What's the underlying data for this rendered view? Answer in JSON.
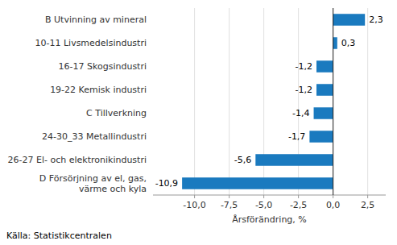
{
  "chart_data": {
    "type": "bar",
    "orientation": "horizontal",
    "categories": [
      "D Försörjning av el, gas,\nvärme och kyla",
      "26-27 El- och elektronikindustri",
      "24-30_33 Metallindustri",
      "C Tillverkning",
      "19-22 Kemisk industri",
      "16-17 Skogsindustri",
      "10-11 Livsmedelsindustri",
      "B Utvinning av mineral"
    ],
    "values": [
      -10.9,
      -5.6,
      -1.7,
      -1.4,
      -1.2,
      -1.2,
      0.3,
      2.3
    ],
    "value_labels": [
      "-10,9",
      "-5,6",
      "-1,7",
      "-1,4",
      "-1,2",
      "-1,2",
      "0,3",
      "2,3"
    ],
    "data_labels": true,
    "color": "#1a7abf",
    "xlabel": "Årsförändring, %",
    "xlim": [
      -13.0,
      3.8
    ],
    "xticks": [
      {
        "value": -10.0,
        "label": "-10,0"
      },
      {
        "value": -7.5,
        "label": "-7,5"
      },
      {
        "value": -5.0,
        "label": "-5,0"
      },
      {
        "value": -2.5,
        "label": "-2,5"
      },
      {
        "value": 0.0,
        "label": "0,0"
      },
      {
        "value": 2.5,
        "label": "2,5"
      }
    ],
    "grid": true,
    "source": "Källa: Statistikcentralen"
  }
}
